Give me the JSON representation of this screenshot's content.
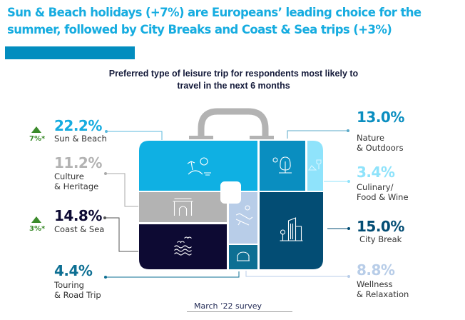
{
  "headline": "Sun & Beach holidays (+7%) are Europeans’ leading choice for the summer, followed by City Breaks and Coast & Sea trips (+3%)",
  "subtitle": "Preferred type of leisure trip for respondents most likely to travel in the next 6 months",
  "footer": "March ’22 survey",
  "chart_data": {
    "type": "treemap",
    "title": "Preferred type of leisure trip for respondents most likely to travel in the next 6 months",
    "unit": "%",
    "categories": [
      "Sun & Beach",
      "Culture & Heritage",
      "Coast & Sea",
      "Touring & Road Trip",
      "Nature & Outdoors",
      "Culinary/ Food & Wine",
      "City Break",
      "Wellness & Relaxation"
    ],
    "values": [
      22.2,
      11.2,
      14.8,
      4.4,
      13.0,
      3.4,
      15.0,
      8.8
    ],
    "items": [
      {
        "value_label": "22.2%",
        "label": "Sun & Beach",
        "color": "#0fb0e3",
        "change": "7%*",
        "icon": "beach-icon"
      },
      {
        "value_label": "11.2%",
        "label": "Culture\n& Heritage",
        "color": "#b3b3b3",
        "icon": "arch-icon"
      },
      {
        "value_label": "14.8%",
        "label": "Coast & Sea",
        "color": "#0d0a33",
        "change": "3%*",
        "icon": "waves-icon"
      },
      {
        "value_label": "4.4%",
        "label": "Touring\n& Road Trip",
        "color": "#0d6f93",
        "icon": "car-icon"
      },
      {
        "value_label": "13.0%",
        "label": "Nature\n& Outdoors",
        "color": "#0a8ec0",
        "icon": "tree-icon"
      },
      {
        "value_label": "3.4%",
        "label": "Culinary/\nFood & Wine",
        "color": "#8fe3fb",
        "icon": "wine-icon"
      },
      {
        "value_label": "15.0%",
        "label": "City Break",
        "color": "#034d74",
        "icon": "city-icon"
      },
      {
        "value_label": "8.8%",
        "label": "Wellness\n& Relaxation",
        "color": "#b8cde8",
        "icon": "lounger-icon"
      }
    ]
  }
}
